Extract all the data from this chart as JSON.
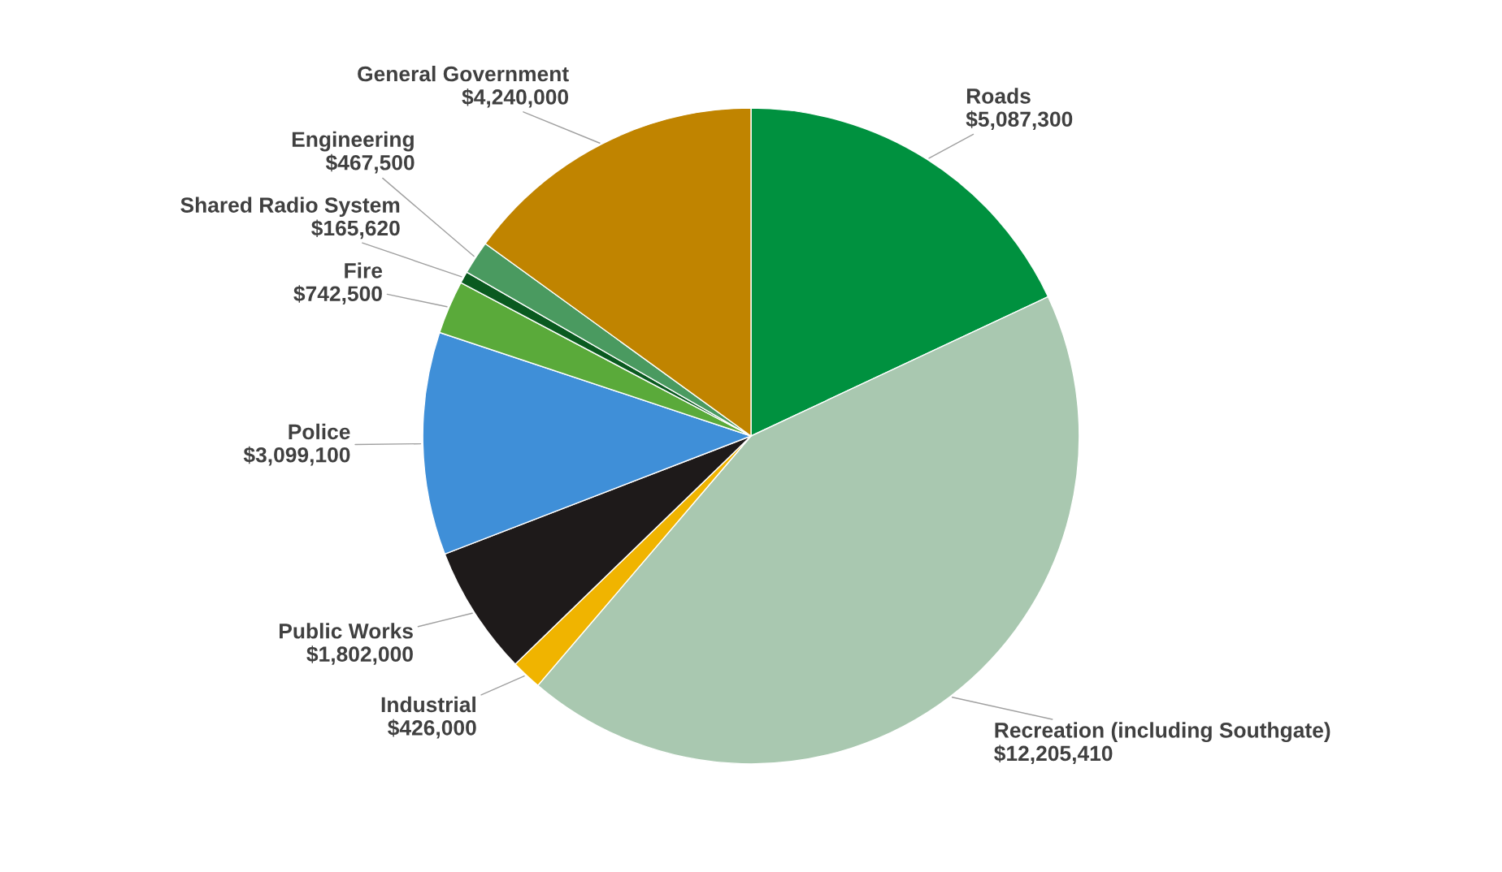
{
  "chart_data": {
    "type": "pie",
    "categories": [
      "Roads",
      "Recreation (including Southgate)",
      "Industrial",
      "Public Works",
      "Police",
      "Fire",
      "Shared Radio System",
      "Engineering",
      "General Government"
    ],
    "values": [
      5087300,
      12205410,
      426000,
      1802000,
      3099100,
      742500,
      165620,
      467500,
      4240000
    ],
    "value_labels": [
      "$5,087,300",
      "$12,205,410",
      "$426,000",
      "$1,802,000",
      "$3,099,100",
      "$742,500",
      "$165,620",
      "$467,500",
      "$4,240,000"
    ],
    "colors": [
      "#00913f",
      "#a9c8b0",
      "#f0b400",
      "#1e1a1a",
      "#3f8fd8",
      "#5aaa3a",
      "#0a5a20",
      "#4a9a60",
      "#c08400"
    ]
  }
}
